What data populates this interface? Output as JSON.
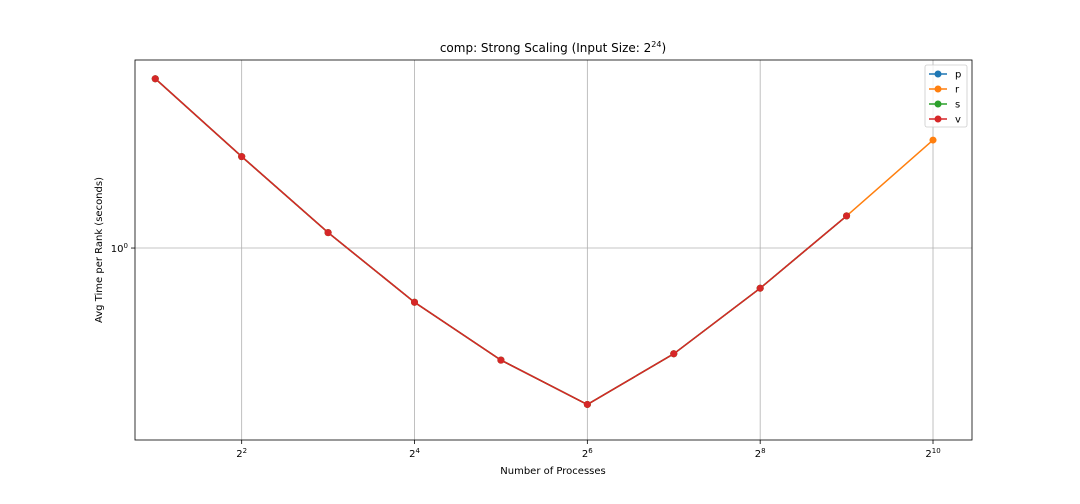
{
  "chart_data": {
    "type": "line",
    "title": {
      "text": "comp: Strong Scaling (Input Size: 2",
      "sup": "24",
      "suffix": ")"
    },
    "xlabel": "Number of Processes",
    "ylabel": "Avg Time per Rank (seconds)",
    "x_scale": "log2",
    "y_scale": "log10",
    "xlim": [
      1.7,
      1400
    ],
    "ylim": [
      0.305,
      3.2
    ],
    "grid": true,
    "legend_position": "top-right",
    "x_ticks": [
      {
        "value": 4,
        "base": "2",
        "exp": "2"
      },
      {
        "value": 16,
        "base": "2",
        "exp": "4"
      },
      {
        "value": 64,
        "base": "2",
        "exp": "6"
      },
      {
        "value": 256,
        "base": "2",
        "exp": "8"
      },
      {
        "value": 1024,
        "base": "2",
        "exp": "10"
      }
    ],
    "y_ticks": [
      {
        "value": 1,
        "base": "10",
        "exp": "0"
      }
    ],
    "series": [
      {
        "name": "p",
        "color": "#1f77b4",
        "x": [
          2,
          4,
          8,
          16,
          32,
          64,
          128,
          256,
          512
        ],
        "y": [
          2.85,
          1.76,
          1.1,
          0.715,
          0.5,
          0.38,
          0.52,
          0.78,
          1.22
        ]
      },
      {
        "name": "r",
        "color": "#ff7f0e",
        "x": [
          2,
          4,
          8,
          16,
          32,
          64,
          128,
          256,
          512,
          1024
        ],
        "y": [
          2.85,
          1.76,
          1.1,
          0.715,
          0.5,
          0.38,
          0.52,
          0.78,
          1.22,
          1.95
        ]
      },
      {
        "name": "s",
        "color": "#2ca02c",
        "x": [
          2,
          4,
          8,
          16,
          32,
          64,
          128,
          256,
          512
        ],
        "y": [
          2.85,
          1.76,
          1.1,
          0.715,
          0.5,
          0.38,
          0.52,
          0.78,
          1.22
        ]
      },
      {
        "name": "v",
        "color": "#d62728",
        "x": [
          2,
          4,
          8,
          16,
          32,
          64,
          128,
          256,
          512
        ],
        "y": [
          2.85,
          1.76,
          1.1,
          0.715,
          0.5,
          0.38,
          0.52,
          0.78,
          1.22
        ]
      }
    ]
  }
}
